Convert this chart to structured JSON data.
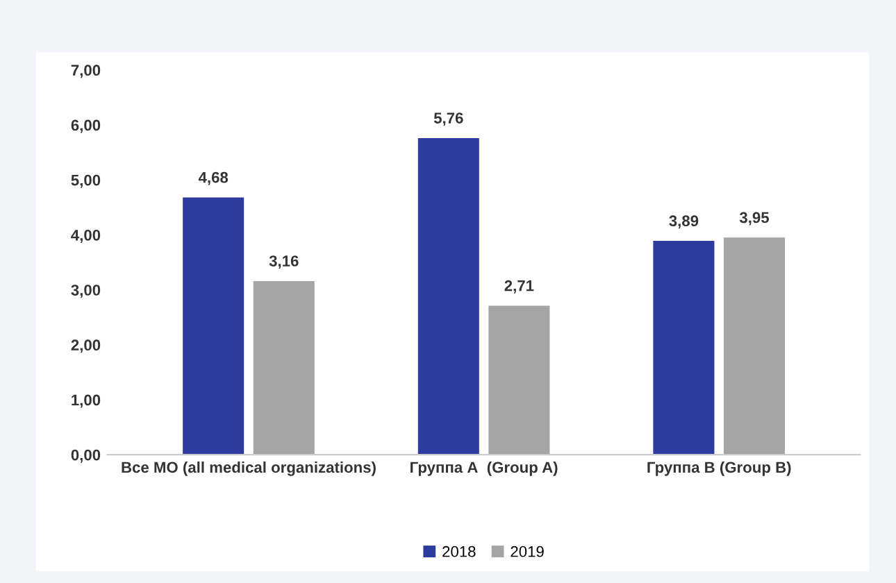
{
  "chart_data": {
    "type": "bar",
    "categories": [
      "Все МО (all medical organizations)",
      "Группа А  (Group A)",
      "Группа В (Group B)"
    ],
    "series": [
      {
        "name": "2018",
        "color": "#2e3b9e",
        "values": [
          4.68,
          5.76,
          3.89
        ],
        "value_labels": [
          "4,68",
          "5,76",
          "3,89"
        ]
      },
      {
        "name": "2019",
        "color": "#a5a5a5",
        "values": [
          3.16,
          2.71,
          3.95
        ],
        "value_labels": [
          "3,16",
          "2,71",
          "3,95"
        ]
      }
    ],
    "ylim": [
      0,
      7
    ],
    "yticks": [
      {
        "value": 0,
        "label": "0,00"
      },
      {
        "value": 1,
        "label": "1,00"
      },
      {
        "value": 2,
        "label": "2,00"
      },
      {
        "value": 3,
        "label": "3,00"
      },
      {
        "value": 4,
        "label": "4,00"
      },
      {
        "value": 5,
        "label": "5,00"
      },
      {
        "value": 6,
        "label": "6,00"
      },
      {
        "value": 7,
        "label": "7,00"
      }
    ],
    "grid": false,
    "legend": "bottom"
  }
}
